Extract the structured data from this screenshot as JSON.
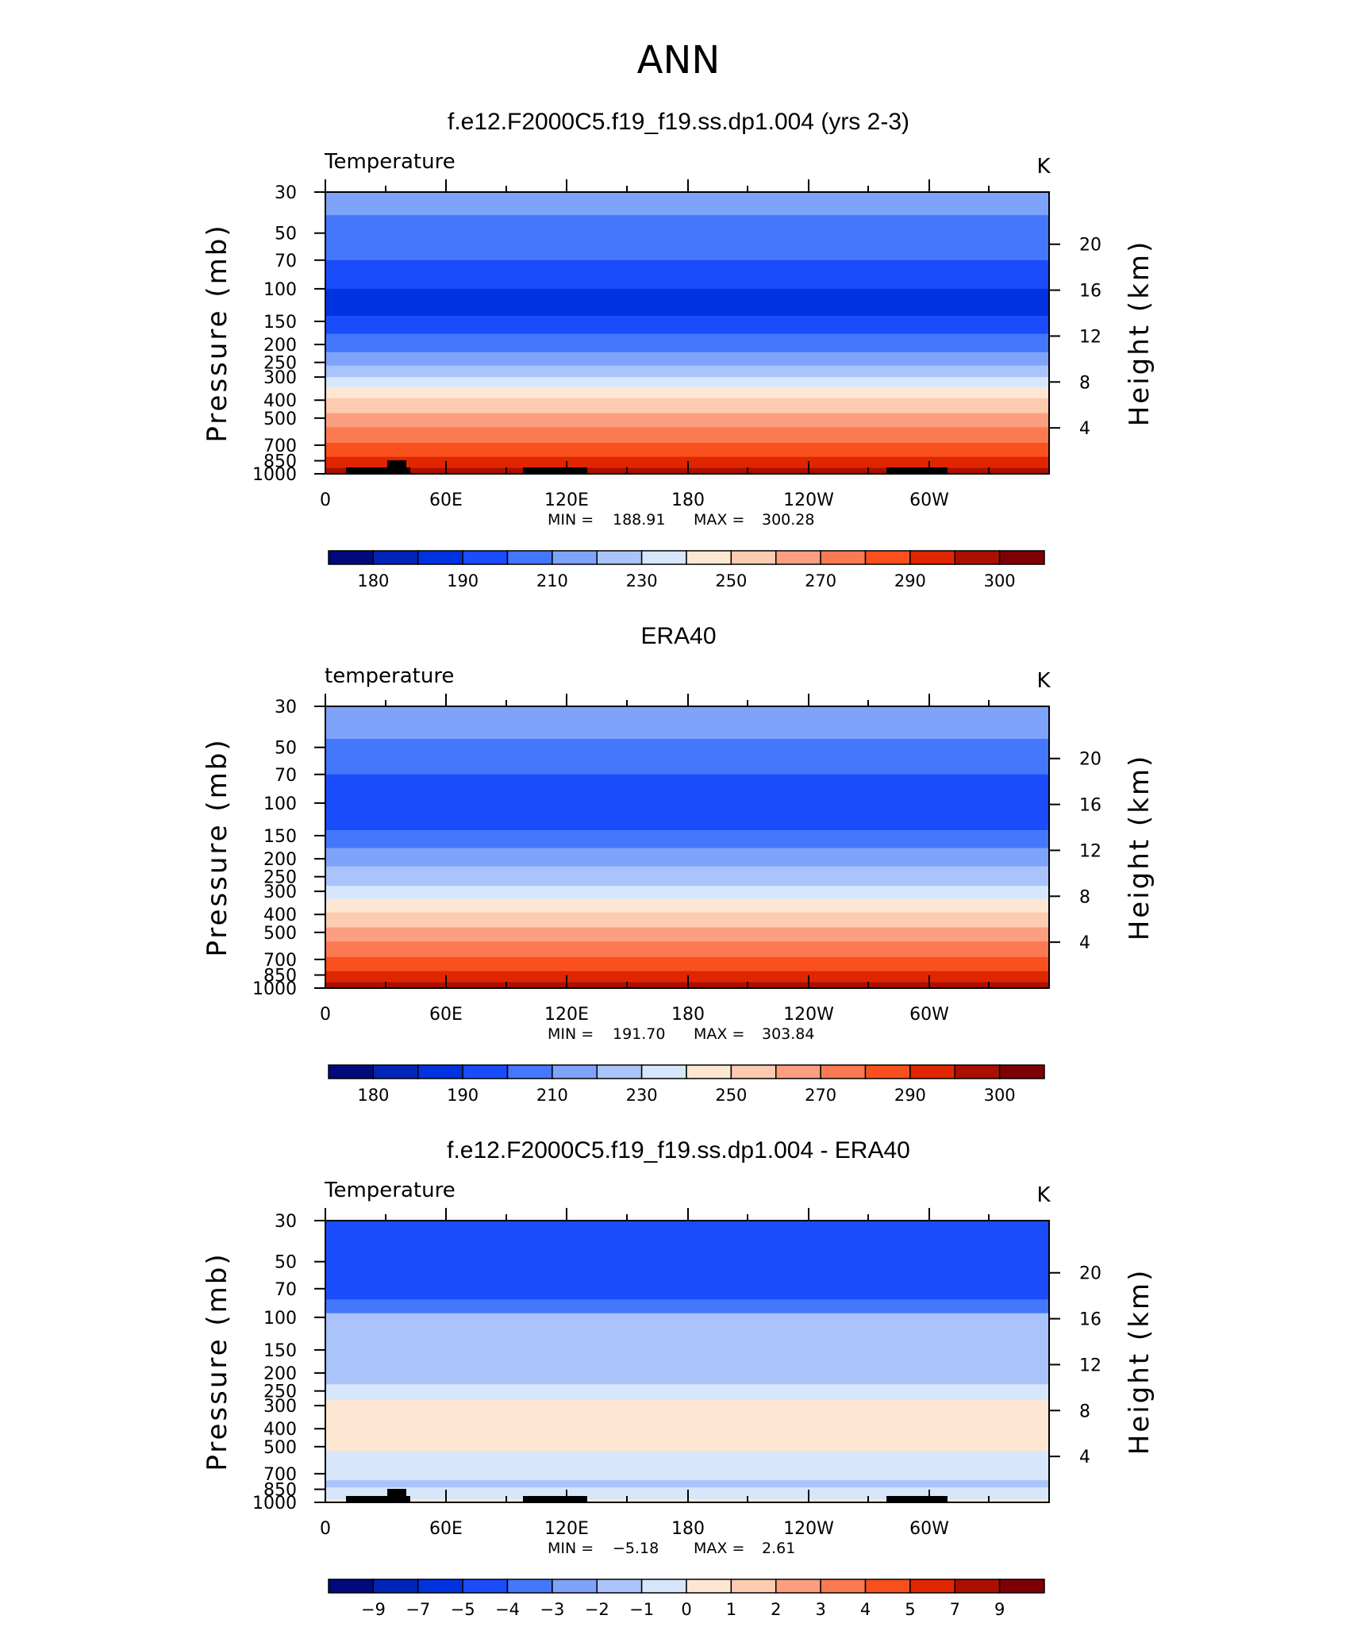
{
  "figure_title": "ANN",
  "colors": [
    "#000a7c",
    "#0025b8",
    "#0033e0",
    "#1a4cfc",
    "#4477fb",
    "#7ea3fb",
    "#aac4fb",
    "#d6e6fb",
    "#fde7d3",
    "#fccbb0",
    "#fb9f80",
    "#fb7a52",
    "#f9501d",
    "#df2600",
    "#ab0f00",
    "#7d0005"
  ],
  "chart_data": [
    {
      "type": "heatmap",
      "panel_title": "f.e12.F2000C5.f19_f19.ss.dp1.004 (yrs 2-3)",
      "variable_label": "Temperature",
      "units": "K",
      "ylabel_left": "Pressure  (mb)",
      "ylabel_right": "Height  (km)",
      "x_ticks": [
        "0",
        "60E",
        "120E",
        "180",
        "120W",
        "60W"
      ],
      "y_ticks": [
        "30",
        "50",
        "70",
        "100",
        "150",
        "200",
        "250",
        "300",
        "400",
        "500",
        "700",
        "850",
        "1000"
      ],
      "y_right_ticks": [
        "20",
        "16",
        "12",
        "8",
        "4"
      ],
      "min_label": "MIN =",
      "min_value": "188.91",
      "max_label": "MAX =",
      "max_value": "300.28",
      "colorbar_labels": [
        "180",
        "190",
        "210",
        "230",
        "250",
        "270",
        "290",
        "300"
      ],
      "levels": [
        {
          "p": 30,
          "c": 5
        },
        {
          "p": 40,
          "c": 4
        },
        {
          "p": 70,
          "c": 3
        },
        {
          "p": 100,
          "c": 2
        },
        {
          "p": 140,
          "c": 3
        },
        {
          "p": 175,
          "c": 4
        },
        {
          "p": 220,
          "c": 5
        },
        {
          "p": 260,
          "c": 6
        },
        {
          "p": 300,
          "c": 7
        },
        {
          "p": 340,
          "c": 8
        },
        {
          "p": 390,
          "c": 9
        },
        {
          "p": 470,
          "c": 10
        },
        {
          "p": 560,
          "c": 11
        },
        {
          "p": 680,
          "c": 12
        },
        {
          "p": 810,
          "c": 13
        },
        {
          "p": 930,
          "c": 14
        }
      ]
    },
    {
      "type": "heatmap",
      "panel_title": "ERA40",
      "variable_label": "temperature",
      "units": "K",
      "ylabel_left": "Pressure  (mb)",
      "ylabel_right": "Height  (km)",
      "x_ticks": [
        "0",
        "60E",
        "120E",
        "180",
        "120W",
        "60W"
      ],
      "y_ticks": [
        "30",
        "50",
        "70",
        "100",
        "150",
        "200",
        "250",
        "300",
        "400",
        "500",
        "700",
        "850",
        "1000"
      ],
      "y_right_ticks": [
        "20",
        "16",
        "12",
        "8",
        "4"
      ],
      "min_label": "MIN =",
      "min_value": "191.70",
      "max_label": "MAX =",
      "max_value": "303.84",
      "colorbar_labels": [
        "180",
        "190",
        "210",
        "230",
        "250",
        "270",
        "290",
        "300"
      ],
      "levels": [
        {
          "p": 30,
          "c": 5
        },
        {
          "p": 45,
          "c": 4
        },
        {
          "p": 70,
          "c": 3
        },
        {
          "p": 140,
          "c": 4
        },
        {
          "p": 175,
          "c": 5
        },
        {
          "p": 220,
          "c": 6
        },
        {
          "p": 280,
          "c": 7
        },
        {
          "p": 330,
          "c": 8
        },
        {
          "p": 390,
          "c": 9
        },
        {
          "p": 470,
          "c": 10
        },
        {
          "p": 560,
          "c": 11
        },
        {
          "p": 680,
          "c": 12
        },
        {
          "p": 810,
          "c": 13
        },
        {
          "p": 930,
          "c": 14
        }
      ]
    },
    {
      "type": "heatmap",
      "panel_title": "f.e12.F2000C5.f19_f19.ss.dp1.004 - ERA40",
      "variable_label": "Temperature",
      "units": "K",
      "ylabel_left": "Pressure  (mb)",
      "ylabel_right": "Height  (km)",
      "x_ticks": [
        "0",
        "60E",
        "120E",
        "180",
        "120W",
        "60W"
      ],
      "y_ticks": [
        "30",
        "50",
        "70",
        "100",
        "150",
        "200",
        "250",
        "300",
        "400",
        "500",
        "700",
        "850",
        "1000"
      ],
      "y_right_ticks": [
        "20",
        "16",
        "12",
        "8",
        "4"
      ],
      "min_label": "MIN =",
      "min_value": "−5.18",
      "max_label": "MAX =",
      "max_value": "2.61",
      "colorbar_labels": [
        "−9",
        "−7",
        "−5",
        "−4",
        "−3",
        "−2",
        "−1",
        "0",
        "1",
        "2",
        "3",
        "4",
        "5",
        "7",
        "9"
      ],
      "levels": [
        {
          "p": 30,
          "c": 3
        },
        {
          "p": 80,
          "c": 4
        },
        {
          "p": 95,
          "c": 6
        },
        {
          "p": 230,
          "c": 7
        },
        {
          "p": 280,
          "c": 8
        },
        {
          "p": 530,
          "c": 7
        },
        {
          "p": 760,
          "c": 6
        },
        {
          "p": 830,
          "c": 7
        },
        {
          "p": 960,
          "c": 8
        }
      ]
    }
  ]
}
